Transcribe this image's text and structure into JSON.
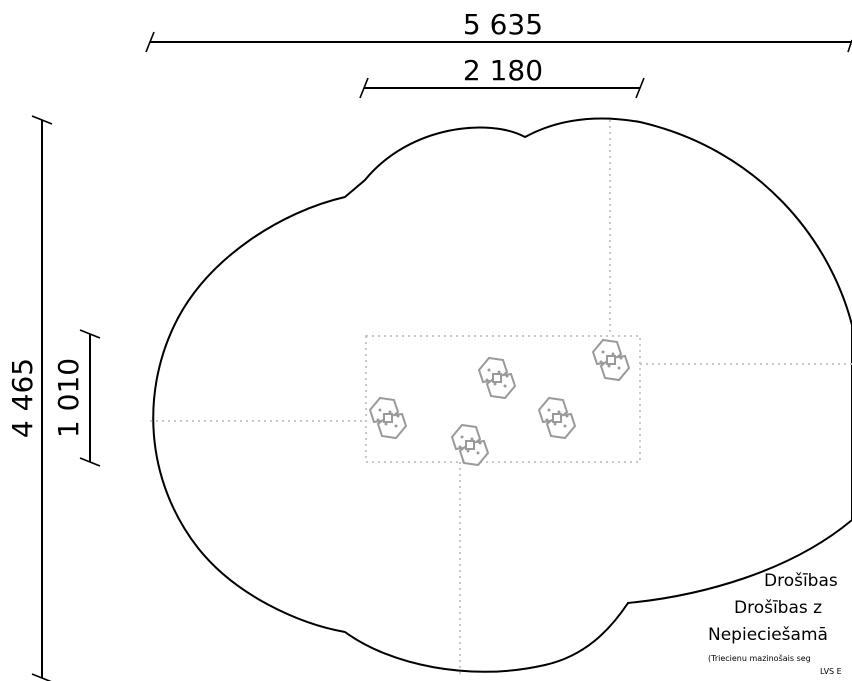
{
  "dimensions": {
    "total_width": "5 635",
    "inner_width": "2 180",
    "total_height": "4 465",
    "inner_height": "1 010"
  },
  "legend": {
    "line1": "Drošības",
    "line2": "Drošības z",
    "line3": "Nepieciešamā",
    "line4": "(Triecienu mazinošais seg",
    "line5": "LVS E"
  },
  "colors": {
    "outline": "#000000",
    "guide": "#c8c8c8",
    "element": "#9a9a9a"
  },
  "elements": {
    "icon": "stepping-post-icon",
    "count": 5
  }
}
